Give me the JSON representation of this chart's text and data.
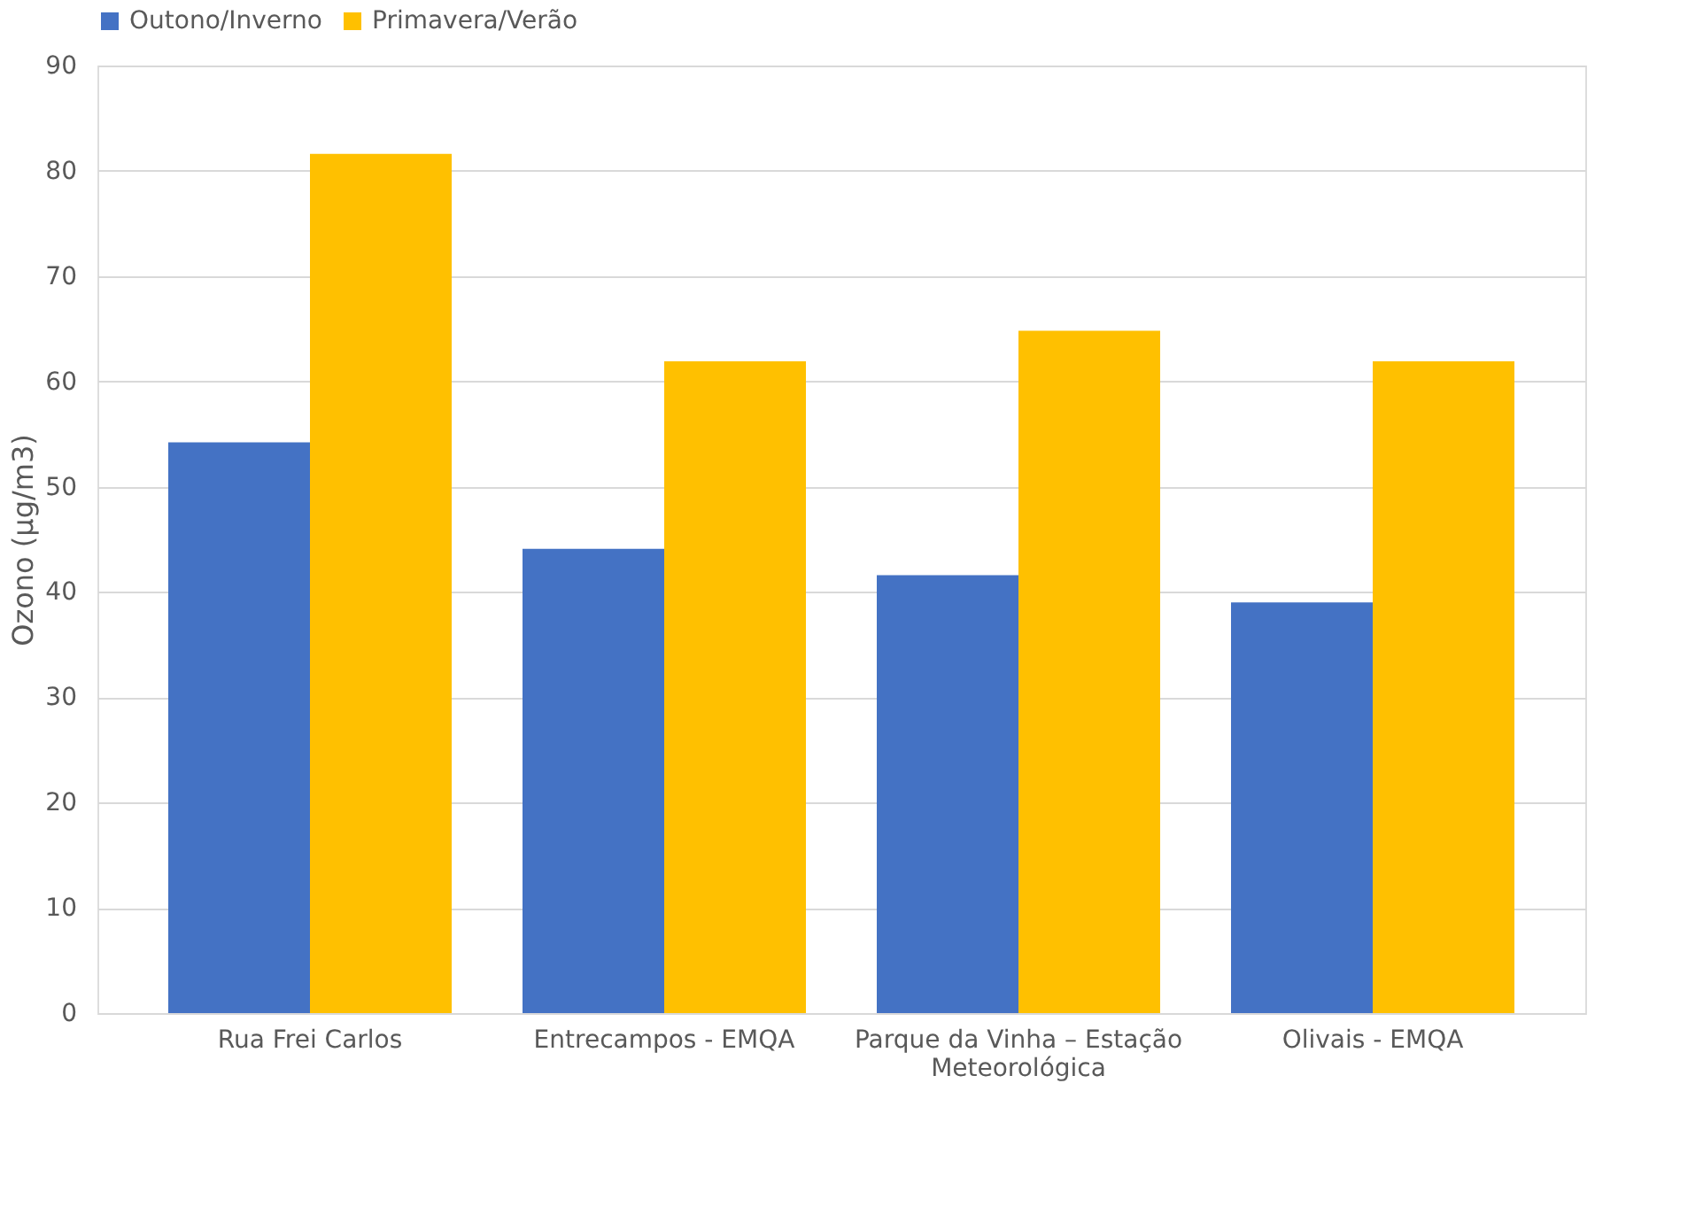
{
  "chart_data": {
    "type": "bar",
    "ylabel": "Ozono (µg/m3)",
    "categories": [
      "Rua Frei Carlos",
      "Entrecampos - EMQA",
      "Parque da Vinha – Estação Meteorológica",
      "Olivais - EMQA"
    ],
    "series": [
      {
        "name": "Outono/Inverno",
        "color": "#4472c4",
        "values": [
          54.2,
          44.1,
          41.6,
          39.0
        ]
      },
      {
        "name": "Primavera/Verão",
        "color": "#ffc000",
        "values": [
          81.6,
          61.9,
          64.8,
          61.9
        ]
      }
    ],
    "ylim": [
      0,
      90
    ],
    "yticks": [
      0,
      10,
      20,
      30,
      40,
      50,
      60,
      70,
      80,
      90
    ],
    "grid": "y",
    "legend": "top"
  }
}
